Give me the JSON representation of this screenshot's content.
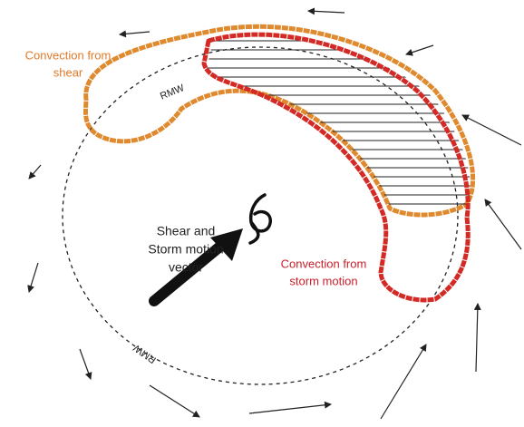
{
  "labels": {
    "shear_convection": [
      "Convection from",
      "shear"
    ],
    "rmw_top": "RMW",
    "rmw_bottom": "RMW",
    "vector": [
      "Shear and",
      "Storm motion",
      "vector"
    ],
    "storm_convection": [
      "Convection from",
      "storm motion"
    ]
  }
}
